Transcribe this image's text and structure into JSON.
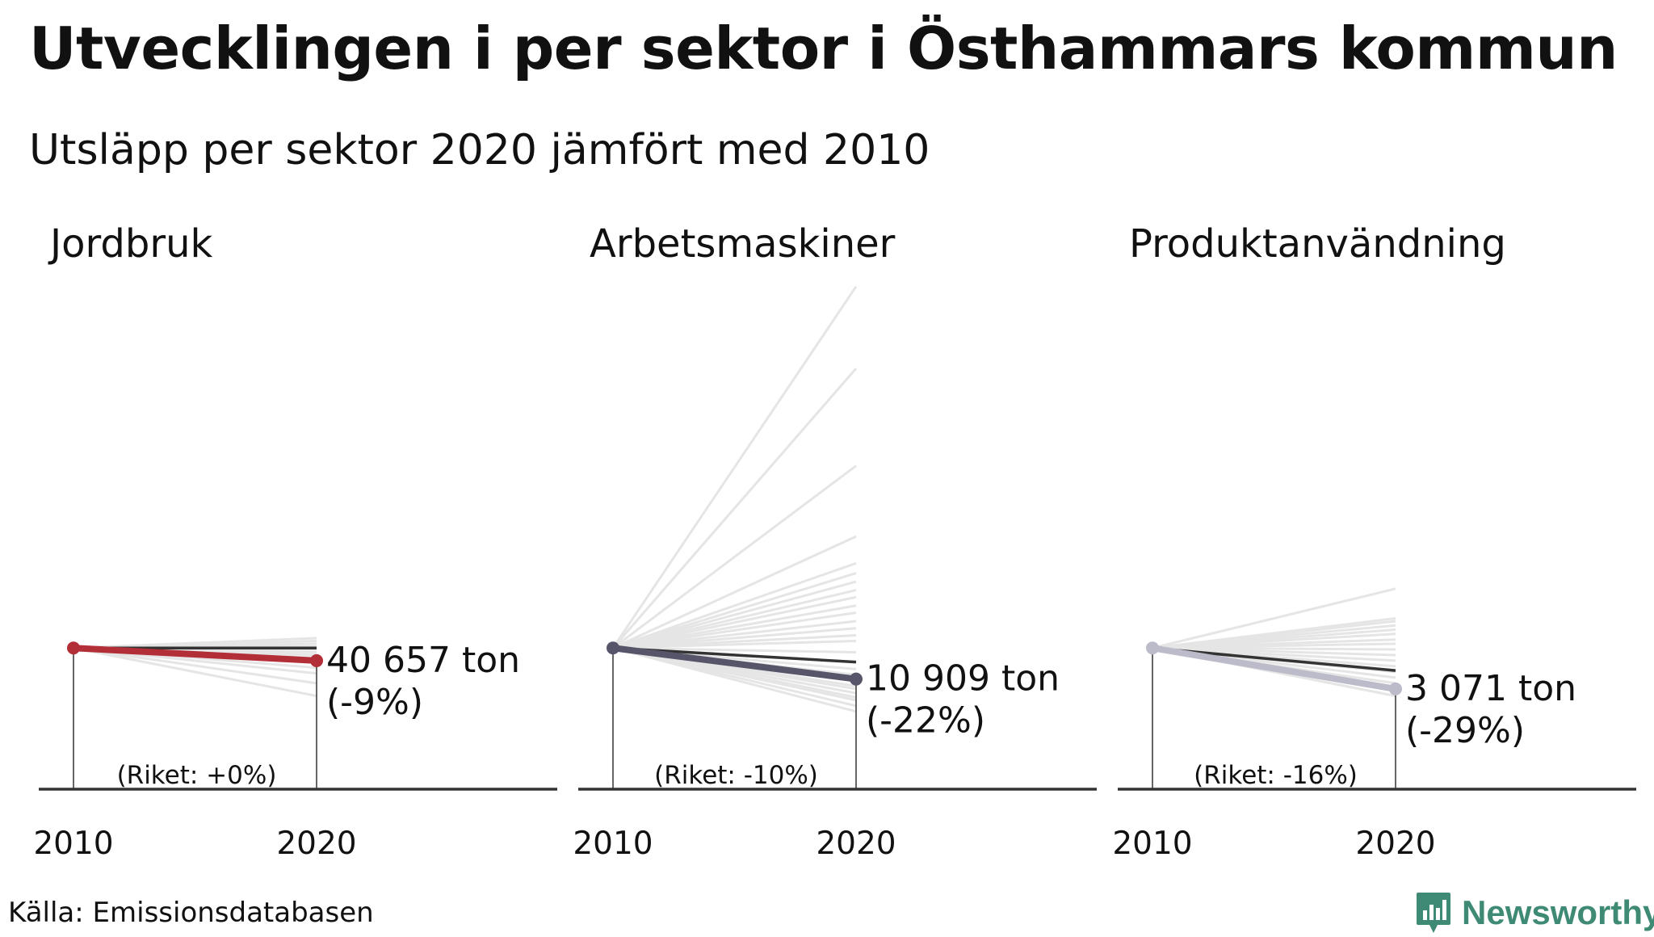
{
  "header": {
    "title": "Utvecklingen i per sektor i Östhammars kommun",
    "subtitle": "Utsläpp per sektor 2020 jämfört med 2010"
  },
  "footer": {
    "source": "Källa: Emissionsdatabasen",
    "brand": "Newsworthy"
  },
  "colors": {
    "background_lines": "#e5e5e5",
    "national_line": "#333333",
    "axis": "#333333",
    "brand": "#3f8a74"
  },
  "chart_data": [
    {
      "type": "line",
      "title": "Jordbruk",
      "x": [
        "2010",
        "2020"
      ],
      "series": [
        {
          "values": [
            100,
            91
          ],
          "color": "#b22f38"
        },
        {
          "name": "Riket",
          "values": [
            100,
            100
          ],
          "color": "#333333"
        }
      ],
      "other_municipalities_2020_index": [
        93,
        95,
        97,
        99,
        101,
        103,
        105,
        107,
        86,
        82,
        75,
        66
      ],
      "label_2020": "40 657 ton",
      "change_label": "(-9%)",
      "riket_label": "(Riket: +0%)",
      "ylim": [
        0,
        360
      ]
    },
    {
      "type": "line",
      "title": "Arbetsmaskiner",
      "x": [
        "2010",
        "2020"
      ],
      "series": [
        {
          "values": [
            100,
            78
          ],
          "color": "#575569"
        },
        {
          "name": "Riket",
          "values": [
            100,
            90
          ],
          "color": "#333333"
        }
      ],
      "other_municipalities_2020_index": [
        356,
        298,
        229,
        179,
        160,
        153,
        147,
        141,
        136,
        130,
        125,
        119,
        114,
        109,
        105,
        97,
        85,
        81,
        77,
        73,
        71,
        68,
        65,
        63,
        59,
        55
      ],
      "label_2020": "10 909 ton",
      "change_label": "(-22%)",
      "riket_label": "(Riket: -10%)",
      "ylim": [
        0,
        360
      ]
    },
    {
      "type": "line",
      "title": "Produktanvändning",
      "x": [
        "2010",
        "2020"
      ],
      "series": [
        {
          "values": [
            100,
            71
          ],
          "color": "#bcbbca"
        },
        {
          "name": "Riket",
          "values": [
            100,
            84
          ],
          "color": "#333333"
        }
      ],
      "other_municipalities_2020_index": [
        142,
        121,
        119,
        116,
        113,
        110,
        106,
        103,
        99,
        95,
        91,
        87,
        83,
        79,
        75,
        70,
        66
      ],
      "label_2020": "3 071 ton",
      "change_label": "(-29%)",
      "riket_label": "(Riket: -16%)",
      "ylim": [
        0,
        360
      ]
    }
  ]
}
